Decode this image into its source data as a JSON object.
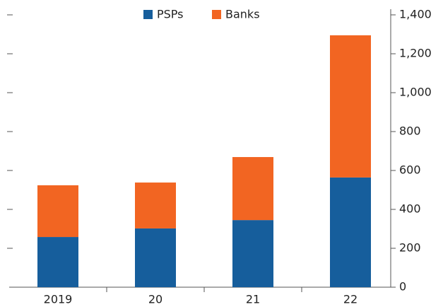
{
  "chart_data": {
    "type": "stacked_bar",
    "categories": [
      "2019",
      "20",
      "21",
      "22"
    ],
    "series": [
      {
        "name": "PSPs",
        "color": "#165e9c",
        "values": [
          258,
          302,
          345,
          564
        ]
      },
      {
        "name": "Banks",
        "color": "#f26522",
        "values": [
          266,
          236,
          324,
          731
        ]
      }
    ],
    "ylim": [
      0,
      1400
    ],
    "yticks": [
      0,
      200,
      400,
      600,
      800,
      {
        "value": 1000,
        "label": "1,000"
      },
      {
        "value": 1200,
        "label": "1,200"
      },
      {
        "value": 1400,
        "label": "1,400"
      }
    ],
    "y_axis_side": "right",
    "legend": "top"
  }
}
